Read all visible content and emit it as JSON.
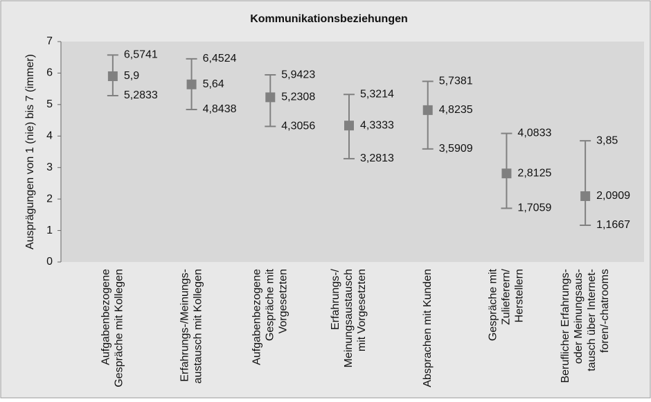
{
  "chart_data": {
    "type": "errorbar",
    "title": "Kommunikationsbeziehungen",
    "y_label": "Ausprägungen von 1 (nie) bis 7 (immer)",
    "categories": [
      [
        "Aufgabenbezogene",
        "Gespräche mit Kollegen"
      ],
      [
        "Erfahrungs-/Meinungs-",
        "austausch mit Kollegen"
      ],
      [
        "Aufgabenbezogene",
        "Gespräche mit",
        "Vorgesetzten"
      ],
      [
        "Erfahrungs-/",
        "Meinungsaustausch",
        "mit Vorgesetzten"
      ],
      [
        "Absprachen mit Kunden"
      ],
      [
        "Gespräche mit",
        "Zulieferern/",
        "Herstellern"
      ],
      [
        "Beruflicher Erfahrungs-",
        "oder Meinungsaus-",
        "tausch über Internet-",
        "foren/-chatrooms"
      ]
    ],
    "series": [
      {
        "color": "#808080",
        "values": [
          5.9,
          5.64,
          5.2308,
          4.3333,
          4.8235,
          2.8125,
          2.0909
        ],
        "value_labels": [
          "5,9",
          "5,64",
          "5,2308",
          "4,3333",
          "4,8235",
          "2,8125",
          "2,0909"
        ]
      },
      {
        "color": "#808080",
        "values": [
          6.5741,
          6.4524,
          5.9423,
          5.3214,
          5.7381,
          4.0833,
          3.85
        ],
        "value_labels": [
          "6,5741",
          "6,4524",
          "5,9423",
          "5,3214",
          "5,7381",
          "4,0833",
          "3,85"
        ]
      },
      {
        "color": "#808080",
        "values": [
          5.2833,
          4.8438,
          4.3056,
          3.2813,
          3.5909,
          1.7059,
          1.1667
        ],
        "value_labels": [
          "5,2833",
          "4,8438",
          "4,3056",
          "3,2813",
          "3,5909",
          "1,7059",
          "1,1667"
        ]
      }
    ],
    "ylim": [
      0,
      7
    ],
    "yticks": [
      0,
      1,
      2,
      3,
      4,
      5,
      6,
      7
    ],
    "grid": false
  }
}
